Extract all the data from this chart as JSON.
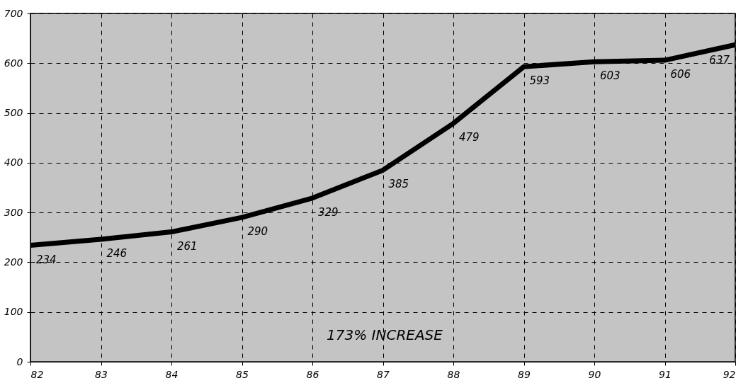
{
  "chart_data": {
    "type": "line",
    "x": [
      82,
      83,
      84,
      85,
      86,
      87,
      88,
      89,
      90,
      91,
      92
    ],
    "series": [
      {
        "color": "#000000",
        "values": [
          234,
          246,
          261,
          290,
          329,
          385,
          479,
          593,
          603,
          606,
          637
        ]
      }
    ],
    "xlim": [
      82,
      92
    ],
    "xticks": [
      82,
      83,
      84,
      85,
      86,
      87,
      88,
      89,
      90,
      91,
      92
    ],
    "ylim": [
      0,
      700
    ],
    "yticks": [
      0,
      100,
      200,
      300,
      400,
      500,
      600,
      700
    ],
    "grid": true,
    "line_style": "solid",
    "marker": "none",
    "data_labels": true,
    "annotations": [
      "173% INCREASE"
    ]
  }
}
